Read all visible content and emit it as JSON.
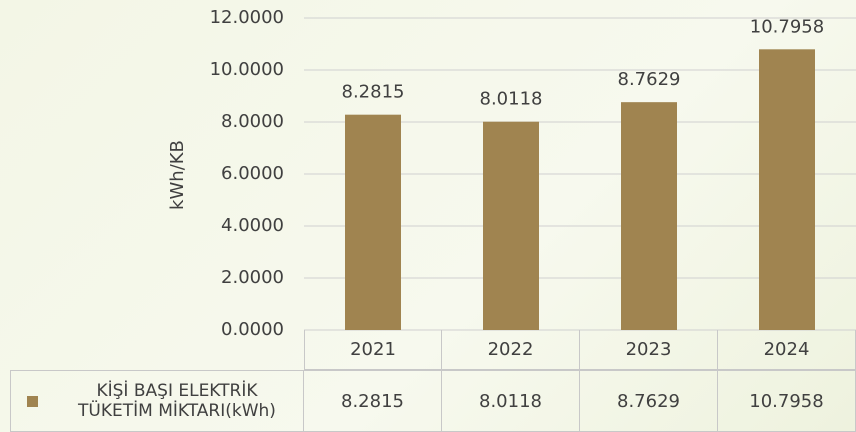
{
  "chart_data": {
    "type": "bar",
    "y_label": "kWh/KB",
    "categories": [
      "2021",
      "2022",
      "2023",
      "2024"
    ],
    "series": [
      {
        "name": "KİŞİ BAŞI ELEKTRİK TÜKETİM MİKTARI(kWh)",
        "color": "#a08450",
        "values": [
          8.2815,
          8.0118,
          8.7629,
          10.7958
        ]
      }
    ],
    "ylim": [
      0,
      12
    ],
    "yticks": [
      {
        "value": 0,
        "label": "0.0000"
      },
      {
        "value": 2,
        "label": "2.0000"
      },
      {
        "value": 4,
        "label": "4.0000"
      },
      {
        "value": 6,
        "label": "6.0000"
      },
      {
        "value": 8,
        "label": "8.0000"
      },
      {
        "value": 10,
        "label": "10.0000"
      },
      {
        "value": 12,
        "label": "12.0000"
      }
    ],
    "grid": true,
    "legend": "bottom-left"
  }
}
